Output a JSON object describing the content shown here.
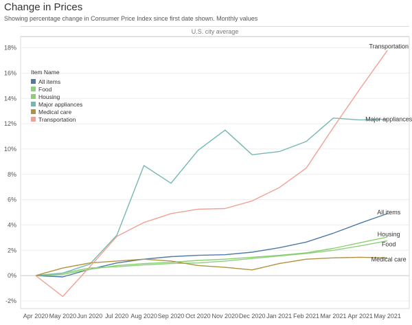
{
  "title": "Change in Prices",
  "subtitle": "Showing percentage change in Consumer Price Index since first date shown. Monthly values",
  "panel_header": "U.S. city average",
  "legend": {
    "title": "Item Name",
    "items": [
      {
        "label": "All items",
        "color": "#4e79a7"
      },
      {
        "label": "Food",
        "color": "#8cd17d"
      },
      {
        "label": "Housing",
        "color": "#8ccf6f"
      },
      {
        "label": "Major appliances",
        "color": "#76b7b2"
      },
      {
        "label": "Medical care",
        "color": "#b0913d"
      },
      {
        "label": "Transportation",
        "color": "#f1a193"
      }
    ]
  },
  "chart_data": {
    "type": "line",
    "x": [
      "Apr 2020",
      "May 2020",
      "Jun 2020",
      "Jul 2020",
      "Aug 2020",
      "Sep 2020",
      "Oct 2020",
      "Nov 2020",
      "Dec 2020",
      "Jan 2021",
      "Feb 2021",
      "Mar 2021",
      "Apr 2021",
      "May 2021"
    ],
    "y_ticks": [
      "-2%",
      "0%",
      "2%",
      "4%",
      "6%",
      "8%",
      "10%",
      "12%",
      "14%",
      "16%",
      "18%"
    ],
    "y_tick_values": [
      -2,
      0,
      2,
      4,
      6,
      8,
      10,
      12,
      14,
      16,
      18
    ],
    "ylim": [
      -2.6,
      18.9
    ],
    "grid": true,
    "series": [
      {
        "name": "All items",
        "color": "#4e79a7",
        "end_label": "All items",
        "values": [
          0,
          -0.1,
          0.5,
          1.0,
          1.3,
          1.5,
          1.6,
          1.65,
          1.85,
          2.2,
          2.65,
          3.35,
          4.15,
          4.9
        ]
      },
      {
        "name": "Food",
        "color": "#8cd17d",
        "end_label": "Food",
        "values": [
          0,
          0.2,
          0.6,
          0.7,
          0.85,
          0.95,
          1.0,
          1.15,
          1.35,
          1.55,
          1.75,
          2.0,
          2.35,
          2.75
        ]
      },
      {
        "name": "Housing",
        "color": "#8ccf6f",
        "end_label": "Housing",
        "values": [
          0,
          0.1,
          0.5,
          0.8,
          0.95,
          1.05,
          1.2,
          1.3,
          1.45,
          1.6,
          1.8,
          2.15,
          2.6,
          3.05
        ]
      },
      {
        "name": "Major appliances",
        "color": "#76b7b2",
        "end_label": "Major appliances",
        "values": [
          0,
          0.2,
          0.9,
          3.2,
          8.7,
          7.3,
          9.9,
          11.5,
          9.55,
          9.8,
          10.6,
          12.45,
          12.3,
          12.35
        ]
      },
      {
        "name": "Medical care",
        "color": "#b0913d",
        "end_label": "Medical care",
        "values": [
          0,
          0.6,
          1.0,
          1.15,
          1.3,
          1.15,
          0.8,
          0.65,
          0.45,
          0.95,
          1.3,
          1.4,
          1.45,
          1.4
        ]
      },
      {
        "name": "Transportation",
        "color": "#f1a193",
        "end_label": "Transportation",
        "values": [
          0,
          -1.65,
          0.7,
          3.1,
          4.2,
          4.9,
          5.25,
          5.3,
          5.9,
          6.95,
          8.5,
          11.7,
          14.8,
          17.8
        ]
      }
    ]
  }
}
